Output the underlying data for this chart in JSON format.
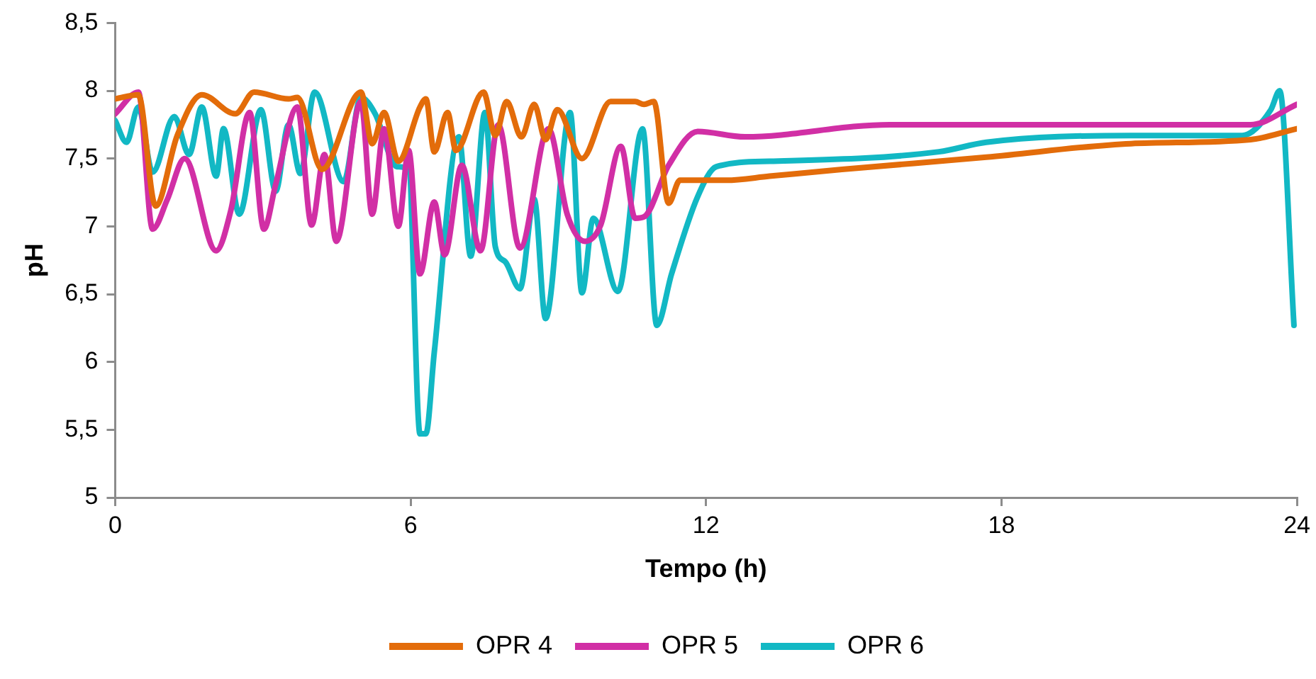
{
  "chart_data": {
    "type": "line",
    "xlabel": "Tempo (h)",
    "ylabel": "pH",
    "xlim": [
      0,
      24
    ],
    "xticks": [
      0,
      6,
      12,
      18,
      24
    ],
    "ylim": [
      5,
      8.5
    ],
    "yticks": [
      5,
      {
        "value": 5.5,
        "label": "5,5"
      },
      6,
      {
        "value": 6.5,
        "label": "6,5"
      },
      7,
      {
        "value": 7.5,
        "label": "7,5"
      },
      8,
      {
        "value": 8.5,
        "label": "8,5"
      }
    ],
    "grid": false,
    "legend": "bottom",
    "marker": "none",
    "line_style": "solid",
    "series": [
      {
        "name": "OPR 4",
        "color": "#e36c0a",
        "x": [
          0,
          0.47,
          0.82,
          1.26,
          1.76,
          2.44,
          2.82,
          3.52,
          3.7,
          4.2,
          4.99,
          5.22,
          5.46,
          5.75,
          6.19,
          6.31,
          6.48,
          6.75,
          6.92,
          7.48,
          7.72,
          7.95,
          8.25,
          8.51,
          8.74,
          8.98,
          9.48,
          10.06,
          10.56,
          10.74,
          10.94,
          11.24,
          11.47,
          12.41,
          13.29,
          14.76,
          17.69,
          20.63,
          23.06,
          24
        ],
        "values": [
          7.94,
          7.97,
          7.15,
          7.67,
          7.97,
          7.83,
          7.99,
          7.94,
          7.95,
          7.42,
          7.99,
          7.61,
          7.84,
          7.48,
          7.88,
          7.94,
          7.55,
          7.84,
          7.56,
          7.99,
          7.67,
          7.92,
          7.66,
          7.9,
          7.64,
          7.86,
          7.5,
          7.92,
          7.92,
          7.9,
          7.92,
          7.17,
          7.34,
          7.34,
          7.37,
          7.42,
          7.51,
          7.61,
          7.64,
          7.72
        ]
      },
      {
        "name": "OPR 5",
        "color": "#d12fa5",
        "x": [
          0,
          0.47,
          0.76,
          1.06,
          1.41,
          2.05,
          2.35,
          2.73,
          3.02,
          3.26,
          3.7,
          3.99,
          4.25,
          4.49,
          4.99,
          5.22,
          5.46,
          5.75,
          5.96,
          6.19,
          6.48,
          6.69,
          7.04,
          7.42,
          7.78,
          8.22,
          8.8,
          9.18,
          9.54,
          9.86,
          10.27,
          10.56,
          10.74,
          11.24,
          11.83,
          12.79,
          15.73,
          18.66,
          21.6,
          23.06,
          24
        ],
        "values": [
          7.83,
          7.99,
          6.98,
          7.2,
          7.5,
          6.82,
          7.12,
          7.84,
          6.98,
          7.31,
          7.88,
          7.01,
          7.53,
          6.89,
          7.92,
          7.09,
          7.72,
          7,
          7.56,
          6.65,
          7.18,
          6.79,
          7.45,
          6.82,
          7.75,
          6.84,
          7.72,
          7.09,
          6.89,
          7.01,
          7.59,
          7.06,
          7.07,
          7.45,
          7.7,
          7.66,
          7.75,
          7.75,
          7.75,
          7.75,
          7.9
        ]
      },
      {
        "name": "OPR 6",
        "color": "#12b8c4",
        "x": [
          0,
          0.23,
          0.47,
          0.76,
          1.2,
          1.5,
          1.76,
          2.05,
          2.2,
          2.52,
          2.96,
          3.26,
          3.52,
          3.76,
          4.05,
          4.64,
          4.99,
          5.28,
          5.72,
          5.96,
          6.19,
          6.31,
          6.48,
          6.98,
          7.22,
          7.51,
          7.72,
          7.92,
          8.22,
          8.51,
          8.74,
          9.24,
          9.48,
          9.71,
          10.21,
          10.71,
          11,
          11.3,
          11.83,
          12.21,
          13.29,
          16.73,
          17.69,
          20.63,
          22.89,
          23.47,
          23.65,
          23.94
        ],
        "values": [
          7.78,
          7.62,
          7.88,
          7.4,
          7.81,
          7.53,
          7.88,
          7.37,
          7.72,
          7.09,
          7.86,
          7.26,
          7.75,
          7.39,
          7.99,
          7.33,
          7.95,
          7.83,
          7.44,
          7.42,
          5.47,
          5.47,
          6.07,
          7.66,
          6.78,
          7.84,
          6.85,
          6.74,
          6.54,
          7.2,
          6.32,
          7.84,
          6.51,
          7.06,
          6.52,
          7.72,
          6.27,
          6.65,
          7.22,
          7.44,
          7.48,
          7.55,
          7.62,
          7.67,
          7.67,
          7.86,
          8,
          6.27
        ]
      }
    ]
  }
}
